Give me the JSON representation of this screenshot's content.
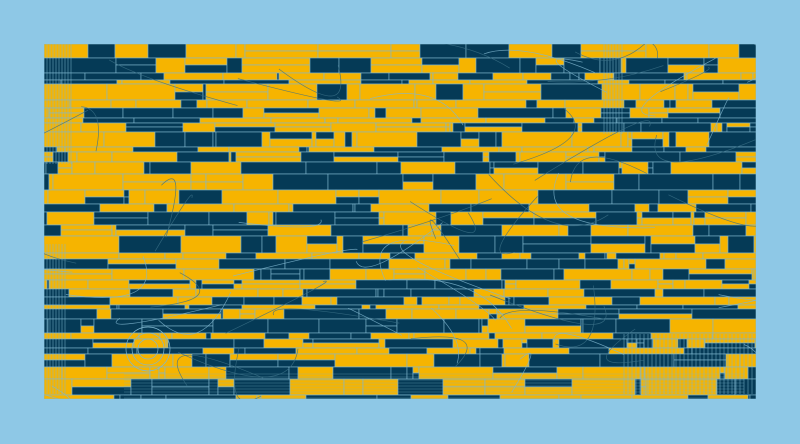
{
  "artwork": {
    "kind": "generative-rectangle-mosaic",
    "colors": {
      "background": "#8ec8e6",
      "primary": "#f6b400",
      "secondary": "#053a56",
      "line": "#7fb7cf"
    },
    "primary_share": 0.52,
    "curves_visible": true
  }
}
